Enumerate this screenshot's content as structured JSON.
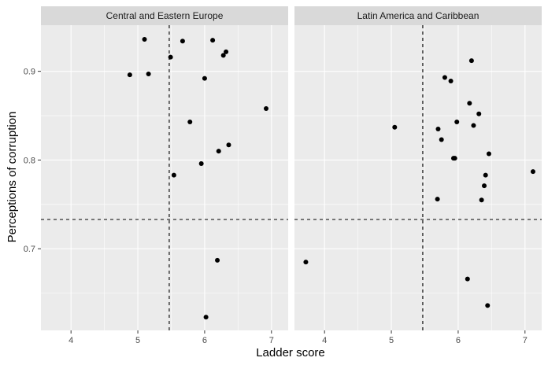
{
  "chart_data": {
    "type": "scatter",
    "xlabel": "Ladder score",
    "ylabel": "Perceptions of corruption",
    "xlim": [
      3.55,
      7.25
    ],
    "ylim": [
      0.608,
      0.952
    ],
    "x_ticks": [
      4,
      5,
      6,
      7
    ],
    "y_ticks": [
      0.7,
      0.8,
      0.9
    ],
    "y_tick_labels": [
      "0.7",
      "0.8",
      "0.9"
    ],
    "x_tick_labels": [
      "4",
      "5",
      "6",
      "7"
    ],
    "reference_lines": {
      "vline_x": 5.47,
      "hline_y": 0.733,
      "style": "dashed"
    },
    "grid": true,
    "facets": [
      {
        "title": "Central and Eastern Europe",
        "points": [
          {
            "x": 5.1,
            "y": 0.936
          },
          {
            "x": 5.67,
            "y": 0.934
          },
          {
            "x": 6.12,
            "y": 0.935
          },
          {
            "x": 5.49,
            "y": 0.916
          },
          {
            "x": 6.32,
            "y": 0.922
          },
          {
            "x": 6.28,
            "y": 0.918
          },
          {
            "x": 4.88,
            "y": 0.896
          },
          {
            "x": 5.16,
            "y": 0.897
          },
          {
            "x": 6.0,
            "y": 0.892
          },
          {
            "x": 6.92,
            "y": 0.858
          },
          {
            "x": 5.78,
            "y": 0.843
          },
          {
            "x": 6.36,
            "y": 0.817
          },
          {
            "x": 6.21,
            "y": 0.81
          },
          {
            "x": 5.95,
            "y": 0.796
          },
          {
            "x": 5.54,
            "y": 0.783
          },
          {
            "x": 6.19,
            "y": 0.687
          },
          {
            "x": 6.02,
            "y": 0.623
          }
        ]
      },
      {
        "title": "Latin America and Caribbean",
        "points": [
          {
            "x": 6.2,
            "y": 0.912
          },
          {
            "x": 5.8,
            "y": 0.893
          },
          {
            "x": 5.89,
            "y": 0.889
          },
          {
            "x": 6.17,
            "y": 0.864
          },
          {
            "x": 6.31,
            "y": 0.852
          },
          {
            "x": 5.98,
            "y": 0.843
          },
          {
            "x": 6.23,
            "y": 0.839
          },
          {
            "x": 5.05,
            "y": 0.837
          },
          {
            "x": 5.7,
            "y": 0.835
          },
          {
            "x": 5.75,
            "y": 0.823
          },
          {
            "x": 6.46,
            "y": 0.807
          },
          {
            "x": 5.93,
            "y": 0.802
          },
          {
            "x": 5.95,
            "y": 0.802
          },
          {
            "x": 7.12,
            "y": 0.787
          },
          {
            "x": 6.41,
            "y": 0.783
          },
          {
            "x": 6.39,
            "y": 0.771
          },
          {
            "x": 5.69,
            "y": 0.756
          },
          {
            "x": 6.35,
            "y": 0.755
          },
          {
            "x": 3.72,
            "y": 0.685
          },
          {
            "x": 6.14,
            "y": 0.666
          },
          {
            "x": 6.44,
            "y": 0.636
          }
        ]
      }
    ]
  },
  "colors": {
    "panel_background": "#ebebeb",
    "strip_background": "#d9d9d9",
    "grid": "#ffffff",
    "point": "#000000",
    "reference_line": "#000000"
  }
}
